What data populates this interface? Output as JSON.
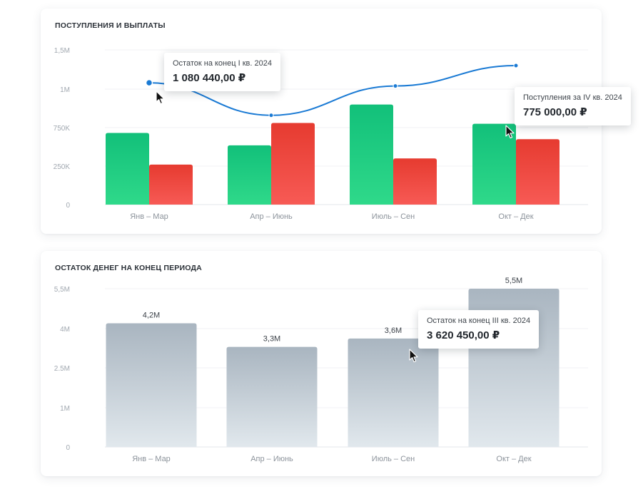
{
  "charts": [
    {
      "title": "ПОСТУПЛЕНИЯ И ВЫПЛАТЫ",
      "tooltips": [
        {
          "label": "Остаток на конец I кв. 2024",
          "value": "1 080 440,00 ₽"
        },
        {
          "label": "Поступления за IV кв. 2024",
          "value": "775 000,00 ₽"
        }
      ]
    },
    {
      "title": "ОСТАТОК ДЕНЕГ НА КОНЕЦ ПЕРИОДА",
      "tooltips": [
        {
          "label": "Остаток на конец III кв. 2024",
          "value": "3 620 450,00 ₽"
        }
      ]
    }
  ],
  "colors": {
    "income": "#22c878",
    "payout": "#ea4a3e",
    "balance_line": "#1a7ad4",
    "balance_bar": "#aab6c1"
  },
  "chart_data": [
    {
      "type": "bar",
      "title": "ПОСТУПЛЕНИЯ И ВЫПЛАТЫ",
      "categories": [
        "Янв – Мар",
        "Апр – Июнь",
        "Июль – Сен",
        "Окт – Дек"
      ],
      "y_ticks": [
        "0",
        "250K",
        "750K",
        "1M",
        "1,5M"
      ],
      "ylim": [
        0,
        1500000
      ],
      "grid": true,
      "series": [
        {
          "type": "bar",
          "values": [
            680000,
            520000,
            900000,
            775000
          ]
        },
        {
          "type": "bar",
          "values": [
            270000,
            780000,
            350000,
            600000
          ]
        },
        {
          "type": "line",
          "values": [
            1080440,
            830000,
            1040000,
            1300000
          ]
        }
      ]
    },
    {
      "type": "bar",
      "title": "ОСТАТОК ДЕНЕГ НА КОНЕЦ ПЕРИОДА",
      "categories": [
        "Янв – Мар",
        "Апр – Июнь",
        "Июль – Сен",
        "Окт – Дек"
      ],
      "y_ticks": [
        "0",
        "1M",
        "2.5M",
        "4M",
        "5,5M"
      ],
      "ylim": [
        0,
        5500000
      ],
      "grid": true,
      "series": [
        {
          "type": "bar",
          "values": [
            4200000,
            3300000,
            3620450,
            5500000
          ],
          "labels": [
            "4,2M",
            "3,3M",
            "3,6M",
            "5,5M"
          ]
        }
      ]
    }
  ]
}
